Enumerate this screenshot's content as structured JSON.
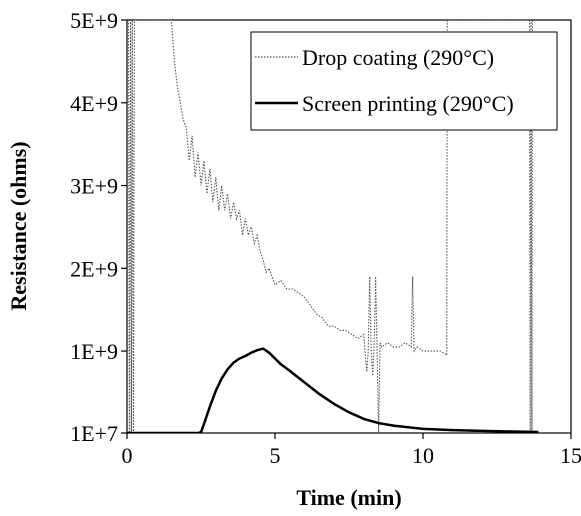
{
  "chart_data": {
    "type": "line",
    "title": "",
    "xlabel": "Time (min)",
    "ylabel": "Resistance (ohms)",
    "xlim": [
      0,
      15
    ],
    "ylim": [
      10000000,
      5000000000
    ],
    "x_ticks": [
      0,
      5,
      10,
      15
    ],
    "x_tick_labels": [
      "0",
      "5",
      "10",
      "15"
    ],
    "y_ticks": [
      10000000,
      1000000000,
      2000000000,
      3000000000,
      4000000000,
      5000000000
    ],
    "y_tick_labels": [
      "1E+7",
      "1E+9",
      "2E+9",
      "3E+9",
      "4E+9",
      "5E+9"
    ],
    "grid": false,
    "legend_position": "top-right",
    "series": [
      {
        "name": "Drop coating (290°C)",
        "style": "dotted",
        "color": "#555555",
        "x": [
          0.05,
          0.08,
          0.12,
          0.15,
          0.18,
          0.22,
          0.25,
          1.5,
          1.6,
          1.7,
          1.8,
          1.9,
          2.0,
          2.1,
          2.2,
          2.3,
          2.4,
          2.5,
          2.6,
          2.7,
          2.8,
          2.9,
          3.0,
          3.1,
          3.2,
          3.3,
          3.4,
          3.5,
          3.6,
          3.7,
          3.8,
          3.9,
          4.0,
          4.1,
          4.2,
          4.3,
          4.4,
          4.5,
          4.6,
          4.7,
          4.8,
          4.9,
          5.0,
          5.2,
          5.4,
          5.6,
          5.8,
          6.0,
          6.2,
          6.4,
          6.6,
          6.8,
          7.0,
          7.2,
          7.4,
          7.6,
          7.8,
          8.0,
          8.05,
          8.1,
          8.15,
          8.2,
          8.25,
          8.3,
          8.35,
          8.4,
          8.45,
          8.5,
          8.55,
          8.6,
          8.8,
          9.0,
          9.2,
          9.4,
          9.6,
          9.65,
          9.7,
          9.8,
          10.0,
          10.2,
          10.4,
          10.6,
          10.8,
          10.82,
          10.85,
          10.88,
          10.9,
          13.6,
          13.62,
          13.65,
          13.68,
          13.7
        ],
        "y": [
          5000000000,
          10000000,
          5000000000,
          10000000,
          5000000000,
          10000000,
          5000000000,
          5000000000,
          4500000000,
          4200000000,
          4000000000,
          3800000000,
          3700000000,
          3300000000,
          3600000000,
          3100000000,
          3400000000,
          3000000000,
          3300000000,
          2900000000,
          3200000000,
          2800000000,
          3100000000,
          2700000000,
          3000000000,
          2700000000,
          2900000000,
          2600000000,
          2800000000,
          2600000000,
          2700000000,
          2400000000,
          2600000000,
          2400000000,
          2500000000,
          2300000000,
          2400000000,
          2200000000,
          2100000000,
          1950000000,
          2000000000,
          1900000000,
          1800000000,
          1850000000,
          1750000000,
          1750000000,
          1700000000,
          1650000000,
          1550000000,
          1450000000,
          1400000000,
          1300000000,
          1300000000,
          1250000000,
          1250000000,
          1200000000,
          1150000000,
          1200000000,
          950000000,
          750000000,
          1000000000,
          1900000000,
          1000000000,
          700000000,
          1100000000,
          1900000000,
          1000000000,
          10000000,
          1100000000,
          1050000000,
          1100000000,
          1050000000,
          1050000000,
          1100000000,
          1050000000,
          1900000000,
          1000000000,
          1050000000,
          1000000000,
          1000000000,
          1000000000,
          1000000000,
          950000000,
          5000000000,
          5000000000,
          5000000000,
          5000000000,
          5000000000,
          10000000,
          5000000000,
          10000000,
          5000000000
        ]
      },
      {
        "name": "Screen printing (290°C)",
        "style": "solid",
        "color": "#000000",
        "x": [
          0.0,
          1.0,
          2.0,
          2.4,
          2.5,
          2.6,
          2.8,
          3.0,
          3.2,
          3.4,
          3.6,
          3.8,
          4.0,
          4.2,
          4.4,
          4.6,
          4.8,
          5.0,
          5.2,
          5.5,
          6.0,
          6.5,
          7.0,
          7.5,
          8.0,
          8.5,
          9.0,
          9.5,
          10.0,
          11.0,
          12.0,
          13.0,
          13.5,
          13.9
        ],
        "y": [
          10000000,
          10000000,
          10000000,
          10000000,
          20000000,
          120000000,
          330000000,
          520000000,
          670000000,
          780000000,
          860000000,
          910000000,
          940000000,
          980000000,
          1010000000,
          1030000000,
          980000000,
          910000000,
          840000000,
          760000000,
          620000000,
          480000000,
          360000000,
          260000000,
          180000000,
          130000000,
          100000000,
          80000000,
          60000000,
          45000000,
          35000000,
          28000000,
          24000000,
          22000000
        ]
      }
    ]
  }
}
